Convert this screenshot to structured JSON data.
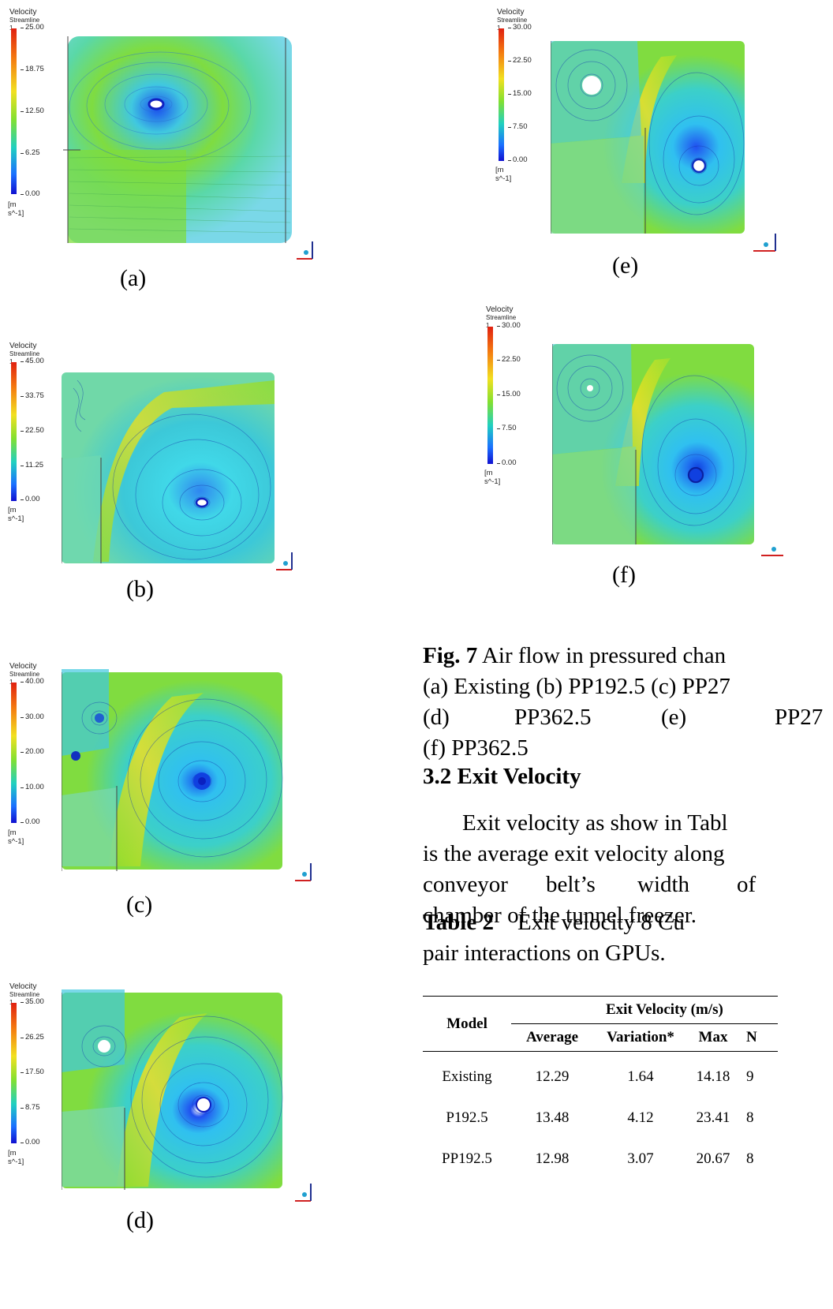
{
  "panels": [
    {
      "id": "a",
      "label": "(a)",
      "cb_title": "Velocity",
      "cb_sub": "Streamline 1",
      "ticks": [
        "25.00",
        "18.75",
        "12.50",
        "6.25",
        "0.00"
      ],
      "unit": "[m s^-1]"
    },
    {
      "id": "b",
      "label": "(b)",
      "cb_title": "Velocity",
      "cb_sub": "Streamline 1",
      "ticks": [
        "45.00",
        "33.75",
        "22.50",
        "11.25",
        "0.00"
      ],
      "unit": "[m s^-1]"
    },
    {
      "id": "c",
      "label": "(c)",
      "cb_title": "Velocity",
      "cb_sub": "Streamline 1",
      "ticks": [
        "40.00",
        "30.00",
        "20.00",
        "10.00",
        "0.00"
      ],
      "unit": "[m s^-1]"
    },
    {
      "id": "d",
      "label": "(d)",
      "cb_title": "Velocity",
      "cb_sub": "Streamline 1",
      "ticks": [
        "35.00",
        "26.25",
        "17.50",
        "8.75",
        "0.00"
      ],
      "unit": "[m s^-1]"
    },
    {
      "id": "e",
      "label": "(e)",
      "cb_title": "Velocity",
      "cb_sub": "Streamline 1",
      "ticks": [
        "30.00",
        "22.50",
        "15.00",
        "7.50",
        "0.00"
      ],
      "unit": "[m s^-1]"
    },
    {
      "id": "f",
      "label": "(f)",
      "cb_title": "Velocity",
      "cb_sub": "Streamline 1",
      "ticks": [
        "30.00",
        "22.50",
        "15.00",
        "7.50",
        "0.00"
      ],
      "unit": "[m s^-1]"
    }
  ],
  "caption": {
    "fig_label": "Fig. 7",
    "line1": "Air flow in pressured chan",
    "line2": "(a) Existing (b) PP192.5 (c) PP27",
    "line3_parts": [
      "(d)",
      "PP362.5",
      "(e)",
      "PP27"
    ],
    "line4": "(f) PP362.5"
  },
  "section": {
    "heading": "3.2 Exit Velocity"
  },
  "paragraph": {
    "line1": "Exit velocity as show in Tabl",
    "line2": "is the average exit velocity along",
    "line3_parts": [
      "conveyor",
      "belt’s",
      "width",
      "of"
    ],
    "line4": "chamber of the tunnel freezer."
  },
  "table_caption": {
    "label": "Table 2",
    "line1": "Exit velocity 8 Cu",
    "line2": "pair interactions on GPUs."
  },
  "table": {
    "col_model": "Model",
    "group_header": "Exit Velocity (m/s)",
    "headers": [
      "Average",
      "Variation*",
      "Max",
      "N"
    ],
    "rows": [
      {
        "model": "Existing",
        "average": "12.29",
        "variation": "1.64",
        "max": "14.18",
        "min": "9"
      },
      {
        "model": "P192.5",
        "average": "13.48",
        "variation": "4.12",
        "max": "23.41",
        "min": "8"
      },
      {
        "model": "PP192.5",
        "average": "12.98",
        "variation": "3.07",
        "max": "20.67",
        "min": "8"
      }
    ]
  }
}
